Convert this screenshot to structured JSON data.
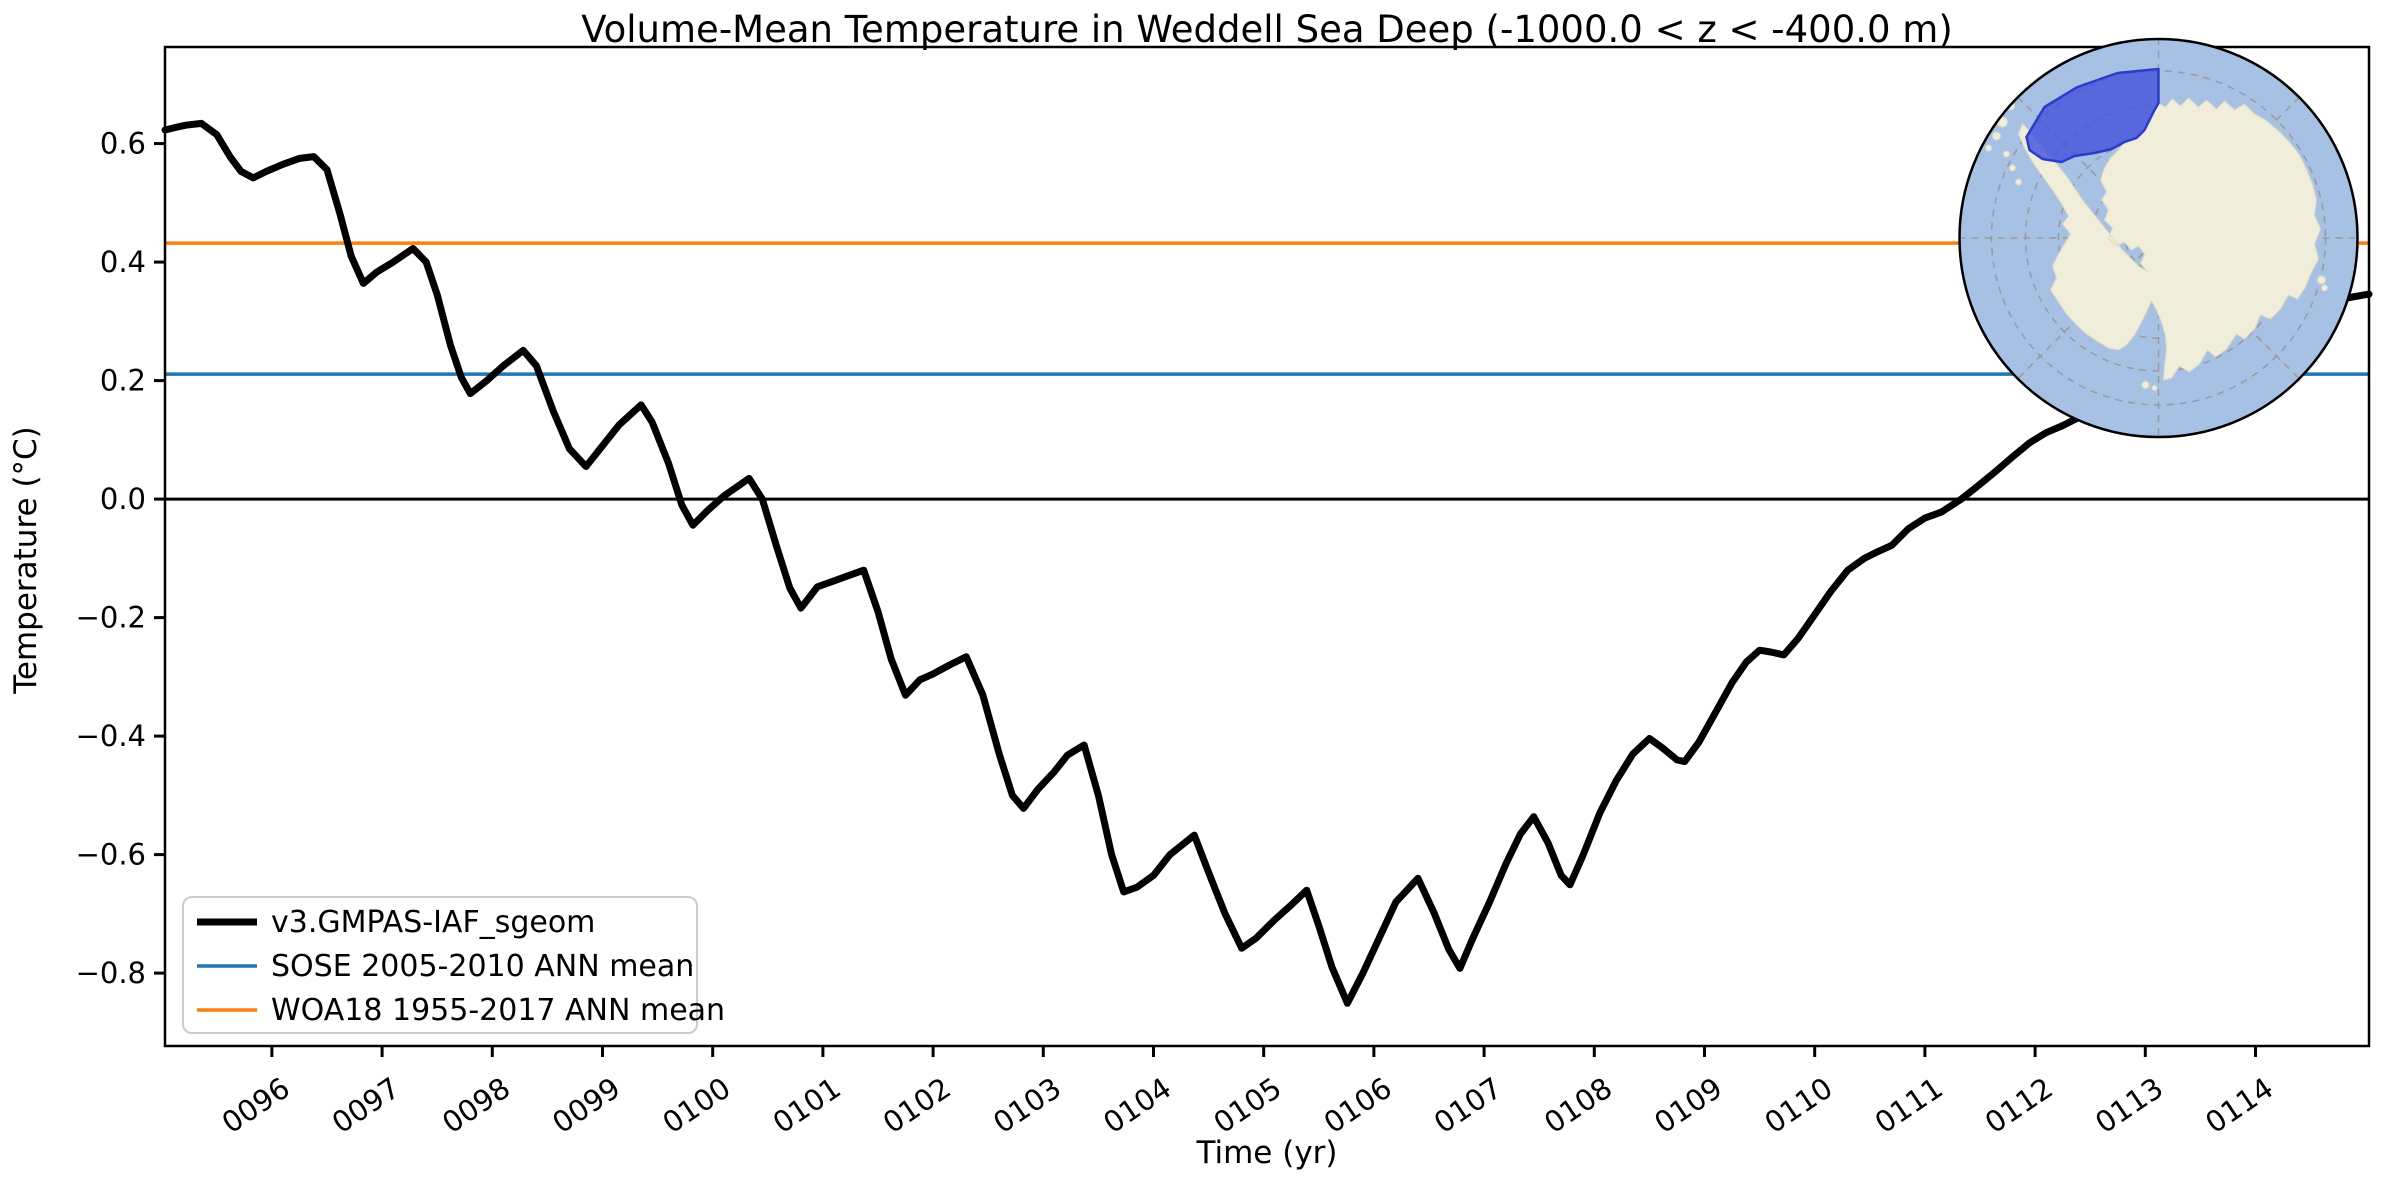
{
  "title": "Volume-Mean Temperature in Weddell Sea Deep (-1000.0 < z < -400.0 m)",
  "axes": {
    "xlabel": "Time (yr)",
    "ylabel": "Temperature (°C)"
  },
  "legend": {
    "position": "lower left",
    "border_color": "#cccccc",
    "background": "#ffffff",
    "items": [
      {
        "label": "v3.GMPAS-IAF_sgeom",
        "color": "#000000",
        "line_width": 7
      },
      {
        "label": "SOSE 2005-2010 ANN mean",
        "color": "#1f77b4",
        "line_width": 3.5
      },
      {
        "label": "WOA18 1955-2017 ANN mean",
        "color": "#ff7f0e",
        "line_width": 3.5
      }
    ]
  },
  "chart_data": {
    "type": "line",
    "title": "Volume-Mean Temperature in Weddell Sea Deep (-1000.0 < z < -400.0 m)",
    "xlabel": "Time (yr)",
    "ylabel": "Temperature (°C)",
    "xlim": [
      95.03,
      115.03
    ],
    "ylim": [
      -0.923,
      0.763
    ],
    "grid": false,
    "x_ticks": {
      "values": [
        96,
        97,
        98,
        99,
        100,
        101,
        102,
        103,
        104,
        105,
        106,
        107,
        108,
        109,
        110,
        111,
        112,
        113,
        114
      ],
      "labels": [
        "0096",
        "0097",
        "0098",
        "0099",
        "0100",
        "0101",
        "0102",
        "0103",
        "0104",
        "0105",
        "0106",
        "0107",
        "0108",
        "0109",
        "0110",
        "0111",
        "0112",
        "0113",
        "0114"
      ],
      "rotation_deg": 34
    },
    "y_ticks": {
      "values": [
        0.6,
        0.4,
        0.2,
        0.0,
        -0.2,
        -0.4,
        -0.6,
        -0.8
      ],
      "labels": [
        "0.6",
        "0.4",
        "0.2",
        "0.0",
        "−0.2",
        "−0.4",
        "−0.6",
        "−0.8"
      ]
    },
    "reference_lines": [
      {
        "name": "zero-line",
        "value": 0.0,
        "color": "#000000",
        "width": 3
      },
      {
        "name": "SOSE 2005-2010 ANN mean",
        "value": 0.211,
        "color": "#1f77b4",
        "width": 3.5
      },
      {
        "name": "WOA18 1955-2017 ANN mean",
        "value": 0.432,
        "color": "#ff7f0e",
        "width": 3.5
      }
    ],
    "series": [
      {
        "name": "v3.GMPAS-IAF_sgeom",
        "color": "#000000",
        "width": 7,
        "points": [
          [
            95.03,
            0.623
          ],
          [
            95.12,
            0.627
          ],
          [
            95.22,
            0.631
          ],
          [
            95.36,
            0.634
          ],
          [
            95.5,
            0.615
          ],
          [
            95.62,
            0.578
          ],
          [
            95.72,
            0.553
          ],
          [
            95.83,
            0.542
          ],
          [
            95.95,
            0.553
          ],
          [
            96.1,
            0.565
          ],
          [
            96.25,
            0.575
          ],
          [
            96.38,
            0.578
          ],
          [
            96.5,
            0.556
          ],
          [
            96.62,
            0.48
          ],
          [
            96.72,
            0.41
          ],
          [
            96.83,
            0.364
          ],
          [
            96.95,
            0.383
          ],
          [
            97.1,
            0.4
          ],
          [
            97.28,
            0.423
          ],
          [
            97.4,
            0.4
          ],
          [
            97.5,
            0.345
          ],
          [
            97.62,
            0.26
          ],
          [
            97.72,
            0.205
          ],
          [
            97.8,
            0.178
          ],
          [
            97.95,
            0.2
          ],
          [
            98.1,
            0.225
          ],
          [
            98.28,
            0.251
          ],
          [
            98.4,
            0.225
          ],
          [
            98.55,
            0.15
          ],
          [
            98.7,
            0.085
          ],
          [
            98.85,
            0.055
          ],
          [
            99.0,
            0.09
          ],
          [
            99.15,
            0.125
          ],
          [
            99.35,
            0.159
          ],
          [
            99.45,
            0.13
          ],
          [
            99.6,
            0.06
          ],
          [
            99.72,
            -0.01
          ],
          [
            99.82,
            -0.044
          ],
          [
            99.95,
            -0.02
          ],
          [
            100.1,
            0.005
          ],
          [
            100.33,
            0.035
          ],
          [
            100.45,
            0.0
          ],
          [
            100.58,
            -0.08
          ],
          [
            100.7,
            -0.15
          ],
          [
            100.8,
            -0.184
          ],
          [
            100.95,
            -0.148
          ],
          [
            101.1,
            -0.138
          ],
          [
            101.25,
            -0.128
          ],
          [
            101.37,
            -0.12
          ],
          [
            101.5,
            -0.19
          ],
          [
            101.62,
            -0.27
          ],
          [
            101.75,
            -0.331
          ],
          [
            101.88,
            -0.305
          ],
          [
            102.0,
            -0.295
          ],
          [
            102.15,
            -0.28
          ],
          [
            102.3,
            -0.266
          ],
          [
            102.45,
            -0.33
          ],
          [
            102.6,
            -0.43
          ],
          [
            102.72,
            -0.5
          ],
          [
            102.82,
            -0.522
          ],
          [
            102.95,
            -0.49
          ],
          [
            103.1,
            -0.46
          ],
          [
            103.22,
            -0.432
          ],
          [
            103.37,
            -0.415
          ],
          [
            103.5,
            -0.5
          ],
          [
            103.62,
            -0.6
          ],
          [
            103.73,
            -0.663
          ],
          [
            103.85,
            -0.655
          ],
          [
            104.0,
            -0.635
          ],
          [
            104.15,
            -0.6
          ],
          [
            104.37,
            -0.567
          ],
          [
            104.5,
            -0.63
          ],
          [
            104.65,
            -0.7
          ],
          [
            104.8,
            -0.758
          ],
          [
            104.93,
            -0.741
          ],
          [
            105.1,
            -0.71
          ],
          [
            105.25,
            -0.685
          ],
          [
            105.39,
            -0.66
          ],
          [
            105.5,
            -0.72
          ],
          [
            105.62,
            -0.79
          ],
          [
            105.76,
            -0.851
          ],
          [
            105.9,
            -0.8
          ],
          [
            106.05,
            -0.74
          ],
          [
            106.2,
            -0.68
          ],
          [
            106.4,
            -0.64
          ],
          [
            106.55,
            -0.7
          ],
          [
            106.68,
            -0.76
          ],
          [
            106.78,
            -0.792
          ],
          [
            106.9,
            -0.74
          ],
          [
            107.05,
            -0.68
          ],
          [
            107.2,
            -0.615
          ],
          [
            107.33,
            -0.565
          ],
          [
            107.45,
            -0.536
          ],
          [
            107.58,
            -0.58
          ],
          [
            107.7,
            -0.635
          ],
          [
            107.78,
            -0.651
          ],
          [
            107.9,
            -0.6
          ],
          [
            108.05,
            -0.53
          ],
          [
            108.2,
            -0.475
          ],
          [
            108.35,
            -0.43
          ],
          [
            108.5,
            -0.404
          ],
          [
            108.62,
            -0.42
          ],
          [
            108.75,
            -0.44
          ],
          [
            108.82,
            -0.443
          ],
          [
            108.95,
            -0.41
          ],
          [
            109.1,
            -0.36
          ],
          [
            109.25,
            -0.31
          ],
          [
            109.38,
            -0.275
          ],
          [
            109.5,
            -0.255
          ],
          [
            109.6,
            -0.258
          ],
          [
            109.72,
            -0.263
          ],
          [
            109.85,
            -0.235
          ],
          [
            110.0,
            -0.195
          ],
          [
            110.15,
            -0.155
          ],
          [
            110.3,
            -0.12
          ],
          [
            110.45,
            -0.1
          ],
          [
            110.57,
            -0.089
          ],
          [
            110.7,
            -0.078
          ],
          [
            110.85,
            -0.05
          ],
          [
            111.0,
            -0.032
          ],
          [
            111.15,
            -0.022
          ],
          [
            111.33,
            0.0
          ],
          [
            111.5,
            0.025
          ],
          [
            111.65,
            0.048
          ],
          [
            111.8,
            0.072
          ],
          [
            111.95,
            0.095
          ],
          [
            112.1,
            0.112
          ],
          [
            112.25,
            0.124
          ],
          [
            112.4,
            0.138
          ],
          [
            112.6,
            0.16
          ],
          [
            112.8,
            0.185
          ],
          [
            113.0,
            0.205
          ],
          [
            113.15,
            0.218
          ],
          [
            113.3,
            0.232
          ],
          [
            113.5,
            0.252
          ],
          [
            113.7,
            0.268
          ],
          [
            113.9,
            0.285
          ],
          [
            114.1,
            0.3
          ],
          [
            114.3,
            0.315
          ],
          [
            114.5,
            0.326
          ],
          [
            114.7,
            0.334
          ],
          [
            114.88,
            0.341
          ],
          [
            115.03,
            0.346
          ]
        ]
      }
    ]
  },
  "inset_map": {
    "name": "antarctica-south-polar-inset",
    "description": "south polar stereographic map with Weddell Sea Deep region highlighted",
    "colors": {
      "ocean": "#a7c1e5",
      "land": "#f0eddb",
      "land_edge": "#ddd9c4",
      "graticule": "#999999",
      "region": "#4653dc",
      "region_edge": "#2c3cc9",
      "border": "#000000"
    }
  }
}
